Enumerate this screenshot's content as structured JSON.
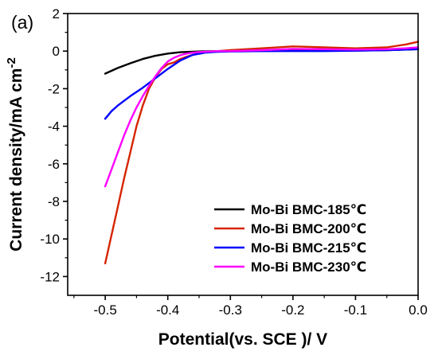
{
  "panel_label": "(a)",
  "chart_data": {
    "type": "line",
    "xlabel": "Potential(vs. SCE )/ V",
    "ylabel": "Current density/mA cm",
    "ylabel_superscript": "-2",
    "xlim": [
      -0.56,
      0.0
    ],
    "ylim": [
      -13,
      2
    ],
    "xticks": [
      -0.5,
      -0.4,
      -0.3,
      -0.2,
      -0.1,
      0.0
    ],
    "xtick_labels": [
      "-0.5",
      "-0.4",
      "-0.3",
      "-0.2",
      "-0.1",
      "0.0"
    ],
    "yticks": [
      2,
      0,
      -2,
      -4,
      -6,
      -8,
      -10,
      -12
    ],
    "ytick_labels": [
      "2",
      "0",
      "-2",
      "-4",
      "-6",
      "-8",
      "-10",
      "-12"
    ],
    "grid": false,
    "legend_position": "bottom-right",
    "series": [
      {
        "name": "Mo-Bi BMC-185℃",
        "color": "#000000",
        "x": [
          -0.5,
          -0.48,
          -0.46,
          -0.44,
          -0.42,
          -0.4,
          -0.38,
          -0.36,
          -0.34,
          -0.32,
          -0.3,
          -0.25,
          -0.2,
          -0.15,
          -0.1,
          -0.05,
          0.0
        ],
        "y": [
          -1.2,
          -0.9,
          -0.65,
          -0.42,
          -0.25,
          -0.13,
          -0.06,
          -0.03,
          -0.01,
          0.0,
          0.01,
          0.01,
          0.02,
          0.02,
          0.03,
          0.05,
          0.1
        ]
      },
      {
        "name": "Mo-Bi BMC-200℃",
        "color": "#d62400",
        "x": [
          -0.5,
          -0.49,
          -0.48,
          -0.47,
          -0.46,
          -0.45,
          -0.44,
          -0.43,
          -0.42,
          -0.41,
          -0.4,
          -0.39,
          -0.38,
          -0.37,
          -0.36,
          -0.35,
          -0.34,
          -0.32,
          -0.3,
          -0.25,
          -0.2,
          -0.15,
          -0.1,
          -0.05,
          -0.02,
          0.0
        ],
        "y": [
          -11.3,
          -9.8,
          -8.3,
          -6.8,
          -5.4,
          -4.0,
          -2.9,
          -2.0,
          -1.4,
          -0.95,
          -0.7,
          -0.6,
          -0.42,
          -0.3,
          -0.2,
          -0.12,
          -0.06,
          0.0,
          0.05,
          0.15,
          0.25,
          0.2,
          0.15,
          0.2,
          0.35,
          0.5
        ]
      },
      {
        "name": "Mo-Bi BMC-215℃",
        "color": "#0000ff",
        "x": [
          -0.5,
          -0.49,
          -0.48,
          -0.46,
          -0.44,
          -0.42,
          -0.4,
          -0.38,
          -0.36,
          -0.34,
          -0.32,
          -0.3,
          -0.25,
          -0.2,
          -0.15,
          -0.1,
          -0.05,
          0.0
        ],
        "y": [
          -3.6,
          -3.2,
          -2.9,
          -2.4,
          -1.95,
          -1.45,
          -0.95,
          -0.5,
          -0.2,
          -0.08,
          -0.04,
          -0.02,
          0.0,
          0.0,
          0.0,
          0.02,
          0.05,
          0.1
        ]
      },
      {
        "name": "Mo-Bi BMC-230℃",
        "color": "#ff00ff",
        "x": [
          -0.5,
          -0.49,
          -0.48,
          -0.47,
          -0.46,
          -0.45,
          -0.44,
          -0.43,
          -0.42,
          -0.41,
          -0.4,
          -0.39,
          -0.38,
          -0.37,
          -0.36,
          -0.35,
          -0.34,
          -0.32,
          -0.3,
          -0.25,
          -0.2,
          -0.15,
          -0.1,
          -0.05,
          -0.02,
          0.0
        ],
        "y": [
          -7.2,
          -6.3,
          -5.4,
          -4.5,
          -3.7,
          -3.0,
          -2.4,
          -1.85,
          -1.35,
          -0.9,
          -0.55,
          -0.35,
          -0.22,
          -0.13,
          -0.08,
          -0.05,
          -0.03,
          0.0,
          0.0,
          0.05,
          0.12,
          0.1,
          0.08,
          0.1,
          0.15,
          0.2
        ]
      }
    ]
  }
}
